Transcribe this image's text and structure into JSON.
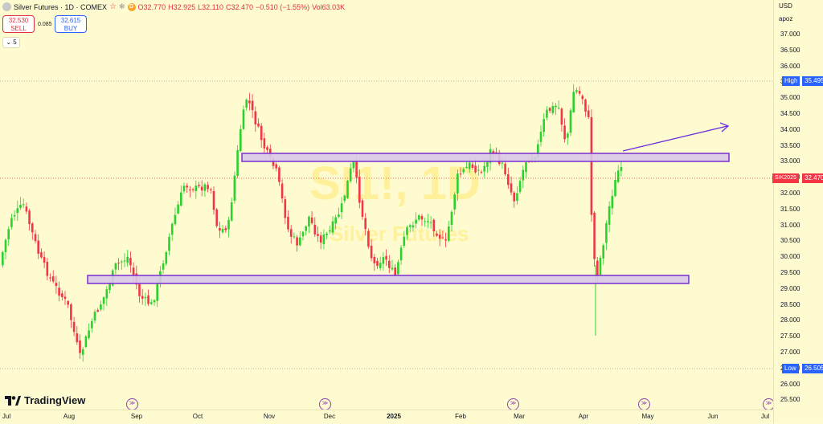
{
  "header": {
    "symbol_title": "Silver Futures · 1D · COMEX",
    "delayed_badge": "D",
    "open": "O32.770",
    "high": "H32.925",
    "low": "L32.110",
    "close": "C32.470",
    "change": "−0.510 (−1.55%)",
    "volume": "Vol63.03K"
  },
  "trade": {
    "sell_price": "32.530",
    "sell_label": "SELL",
    "spread": "0.085",
    "buy_price": "32.615",
    "buy_label": "BUY"
  },
  "indicator_toggle": "⌄ 5",
  "watermark": {
    "symbol": "SI1!, 1D",
    "name": "Silver Futures"
  },
  "price_axis": {
    "currency": "USD",
    "scale_mode": "apoz",
    "ticks": [
      "37.000",
      "36.500",
      "36.000",
      "35.500",
      "35.000",
      "34.500",
      "34.000",
      "33.500",
      "33.000",
      "32.500",
      "32.000",
      "31.500",
      "31.000",
      "30.500",
      "30.000",
      "29.500",
      "29.000",
      "28.500",
      "28.000",
      "27.500",
      "27.000",
      "26.500",
      "26.000",
      "25.500"
    ],
    "high_label": "High",
    "high_value": "35.495",
    "low_label": "Low",
    "low_value": "26.505",
    "last_symbol": "SIK2025",
    "last_value": "32.470"
  },
  "time_axis": {
    "labels": [
      "Jul",
      "Aug",
      "Sep",
      "Oct",
      "Nov",
      "Dec",
      "2025",
      "Feb",
      "Mar",
      "Apr",
      "May",
      "Jun",
      "Jul"
    ]
  },
  "branding": {
    "logo_text": "TradingView"
  },
  "colors": {
    "up": "#2bd12e",
    "down": "#f23645",
    "drawing": "#7b2fd1",
    "zone_fill": "#d6c7e8",
    "background": "#fffbd0"
  }
}
